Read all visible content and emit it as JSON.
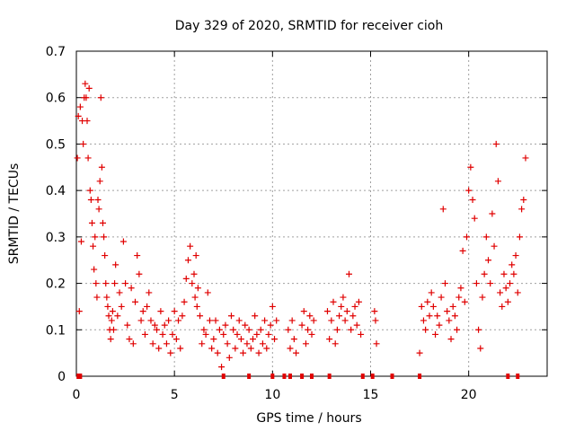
{
  "chart_data": {
    "type": "scatter",
    "title": "Day 329 of 2020, SRMTID for receiver cioh",
    "xlabel": "GPS time / hours",
    "ylabel": "SRMTID / TECUs",
    "xlim": [
      0,
      24
    ],
    "ylim": [
      0,
      0.7
    ],
    "x_ticks": [
      0,
      5,
      10,
      15,
      20
    ],
    "x_tick_labels": [
      "0",
      "5",
      "10",
      "15",
      "20"
    ],
    "y_ticks": [
      0,
      0.1,
      0.2,
      0.3,
      0.4,
      0.5,
      0.6,
      0.7
    ],
    "y_tick_labels": [
      "0",
      "0.1",
      "0.2",
      "0.3",
      "0.4",
      "0.5",
      "0.6",
      "0.7"
    ],
    "grid": true,
    "marker": "+",
    "color": "#e00000",
    "series": [
      {
        "name": "SRMTID",
        "x": [
          0.05,
          0.1,
          0.15,
          0.2,
          0.25,
          0.3,
          0.35,
          0.4,
          0.45,
          0.5,
          0.55,
          0.6,
          0.65,
          0.7,
          0.75,
          0.8,
          0.85,
          0.9,
          0.95,
          1.0,
          1.05,
          1.1,
          1.15,
          1.2,
          1.25,
          1.3,
          1.35,
          1.4,
          1.45,
          1.5,
          1.55,
          1.6,
          1.65,
          1.7,
          1.75,
          1.8,
          1.85,
          1.9,
          1.95,
          2.0,
          2.1,
          2.2,
          2.3,
          2.4,
          2.5,
          2.6,
          2.7,
          2.8,
          2.9,
          3.0,
          3.1,
          3.2,
          3.3,
          3.4,
          3.5,
          3.6,
          3.7,
          3.8,
          3.9,
          4.0,
          4.1,
          4.2,
          4.3,
          4.4,
          4.5,
          4.6,
          4.7,
          4.8,
          4.9,
          5.0,
          5.1,
          5.2,
          5.3,
          5.4,
          5.5,
          5.6,
          5.7,
          5.8,
          5.9,
          6.0,
          6.05,
          6.1,
          6.15,
          6.2,
          6.3,
          6.4,
          6.5,
          6.6,
          6.7,
          6.8,
          6.9,
          7.0,
          7.1,
          7.2,
          7.3,
          7.4,
          7.5,
          7.6,
          7.7,
          7.8,
          7.9,
          8.0,
          8.1,
          8.2,
          8.3,
          8.4,
          8.5,
          8.6,
          8.7,
          8.8,
          8.9,
          9.0,
          9.1,
          9.2,
          9.3,
          9.4,
          9.5,
          9.6,
          9.7,
          9.8,
          9.9,
          10.0,
          10.1,
          10.2,
          10.8,
          10.9,
          11.0,
          11.1,
          11.2,
          11.5,
          11.6,
          11.7,
          11.8,
          11.9,
          12.0,
          12.1,
          12.8,
          12.9,
          13.0,
          13.1,
          13.2,
          13.3,
          13.4,
          13.5,
          13.6,
          13.7,
          13.8,
          13.9,
          14.0,
          14.1,
          14.2,
          14.3,
          14.4,
          14.5,
          15.2,
          15.25,
          15.3,
          17.5,
          17.6,
          17.7,
          17.8,
          17.9,
          18.0,
          18.1,
          18.2,
          18.3,
          18.4,
          18.5,
          18.6,
          18.7,
          18.8,
          18.9,
          19.0,
          19.1,
          19.2,
          19.3,
          19.4,
          19.5,
          19.6,
          19.7,
          19.8,
          19.9,
          20.0,
          20.1,
          20.2,
          20.3,
          20.4,
          20.5,
          20.6,
          20.7,
          20.8,
          20.9,
          21.0,
          21.1,
          21.2,
          21.3,
          21.4,
          21.5,
          21.6,
          21.7,
          21.8,
          21.9,
          22.0,
          22.1,
          22.2,
          22.3,
          22.4,
          22.5,
          22.6,
          22.7,
          22.8,
          22.9
        ],
        "y": [
          0.47,
          0.56,
          0.14,
          0.58,
          0.29,
          0.55,
          0.5,
          0.6,
          0.63,
          0.6,
          0.55,
          0.47,
          0.62,
          0.4,
          0.38,
          0.33,
          0.28,
          0.23,
          0.3,
          0.2,
          0.17,
          0.38,
          0.36,
          0.42,
          0.6,
          0.45,
          0.33,
          0.3,
          0.26,
          0.2,
          0.17,
          0.15,
          0.13,
          0.1,
          0.08,
          0.12,
          0.14,
          0.1,
          0.2,
          0.24,
          0.13,
          0.18,
          0.15,
          0.29,
          0.2,
          0.11,
          0.08,
          0.19,
          0.07,
          0.16,
          0.26,
          0.22,
          0.12,
          0.14,
          0.09,
          0.15,
          0.18,
          0.12,
          0.07,
          0.11,
          0.1,
          0.06,
          0.14,
          0.09,
          0.11,
          0.07,
          0.12,
          0.05,
          0.09,
          0.14,
          0.08,
          0.12,
          0.06,
          0.13,
          0.16,
          0.21,
          0.25,
          0.28,
          0.2,
          0.22,
          0.17,
          0.26,
          0.15,
          0.19,
          0.13,
          0.07,
          0.1,
          0.09,
          0.18,
          0.12,
          0.06,
          0.08,
          0.12,
          0.05,
          0.1,
          0.02,
          0.09,
          0.11,
          0.07,
          0.04,
          0.13,
          0.1,
          0.06,
          0.09,
          0.12,
          0.08,
          0.05,
          0.11,
          0.07,
          0.1,
          0.06,
          0.08,
          0.13,
          0.09,
          0.05,
          0.1,
          0.07,
          0.12,
          0.06,
          0.09,
          0.11,
          0.15,
          0.08,
          0.12,
          0.1,
          0.06,
          0.12,
          0.08,
          0.05,
          0.11,
          0.14,
          0.07,
          0.1,
          0.13,
          0.09,
          0.12,
          0.14,
          0.08,
          0.12,
          0.16,
          0.07,
          0.1,
          0.13,
          0.15,
          0.17,
          0.12,
          0.14,
          0.22,
          0.1,
          0.13,
          0.15,
          0.11,
          0.16,
          0.09,
          0.14,
          0.12,
          0.07,
          0.05,
          0.15,
          0.12,
          0.1,
          0.16,
          0.13,
          0.18,
          0.15,
          0.09,
          0.13,
          0.11,
          0.17,
          0.36,
          0.2,
          0.14,
          0.12,
          0.08,
          0.15,
          0.13,
          0.1,
          0.17,
          0.19,
          0.27,
          0.16,
          0.3,
          0.4,
          0.45,
          0.38,
          0.34,
          0.2,
          0.1,
          0.06,
          0.17,
          0.22,
          0.3,
          0.25,
          0.2,
          0.35,
          0.28,
          0.5,
          0.42,
          0.18,
          0.15,
          0.22,
          0.19,
          0.16,
          0.2,
          0.24,
          0.22,
          0.26,
          0.18,
          0.3,
          0.36,
          0.38,
          0.47
        ],
        "gap_markers_x": [
          0.1,
          0.2,
          7.5,
          8.8,
          10.0,
          10.6,
          10.9,
          11.5,
          12.0,
          12.9,
          14.6,
          15.1,
          16.1,
          17.5,
          22.0,
          22.5
        ]
      }
    ]
  }
}
